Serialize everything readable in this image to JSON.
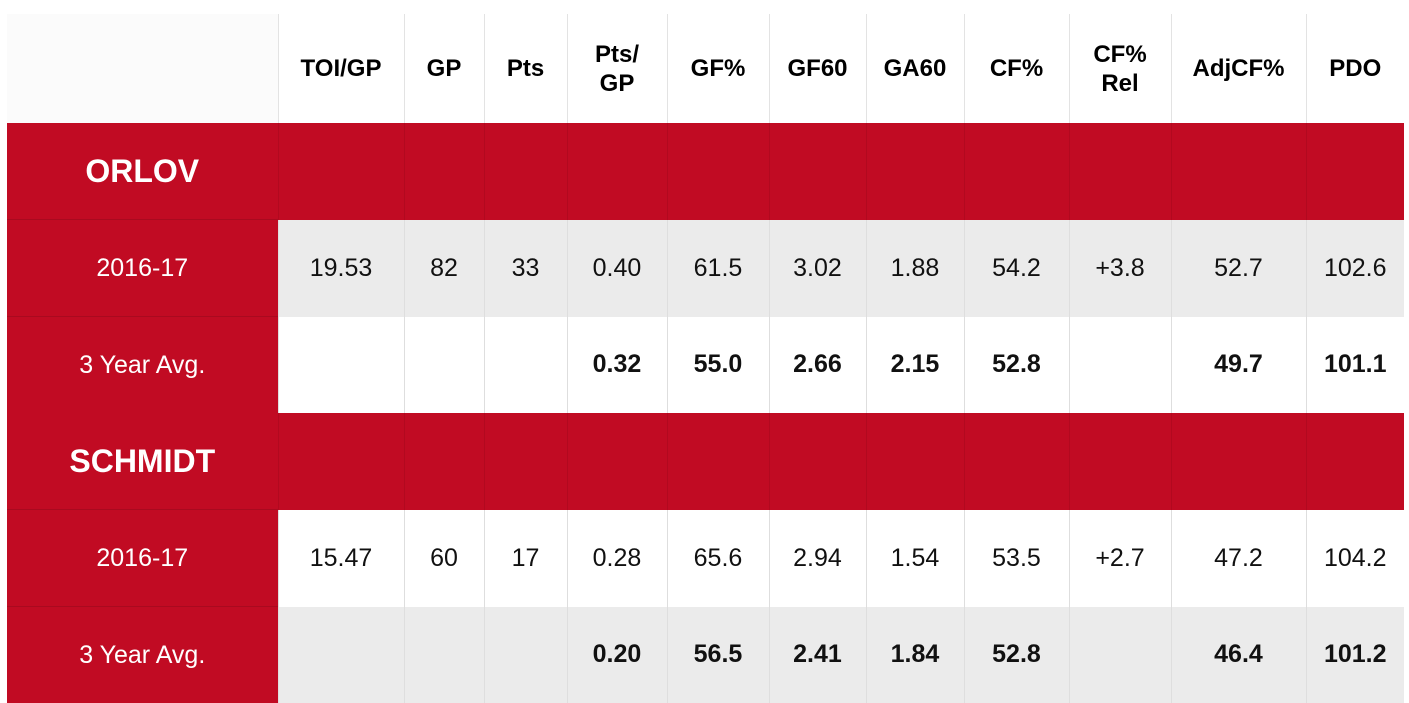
{
  "columns": [
    "TOI/GP",
    "GP",
    "Pts",
    "Pts/\nGP",
    "GF%",
    "GF60",
    "GA60",
    "CF%",
    "CF%\nRel",
    "AdjCF%",
    "PDO"
  ],
  "players": [
    {
      "name": "ORLOV",
      "rows": [
        {
          "label": "2016-17",
          "values": [
            "19.53",
            "82",
            "33",
            "0.40",
            "61.5",
            "3.02",
            "1.88",
            "54.2",
            "+3.8",
            "52.7",
            "102.6"
          ]
        },
        {
          "label": "3 Year Avg.",
          "values": [
            "",
            "",
            "",
            "0.32",
            "55.0",
            "2.66",
            "2.15",
            "52.8",
            "",
            "49.7",
            "101.1"
          ]
        }
      ]
    },
    {
      "name": "SCHMIDT",
      "rows": [
        {
          "label": "2016-17",
          "values": [
            "15.47",
            "60",
            "17",
            "0.28",
            "65.6",
            "2.94",
            "1.54",
            "53.5",
            "+2.7",
            "47.2",
            "104.2"
          ]
        },
        {
          "label": "3 Year Avg.",
          "values": [
            "",
            "",
            "",
            "0.20",
            "56.5",
            "2.41",
            "1.84",
            "52.8",
            "",
            "46.4",
            "101.2"
          ]
        }
      ]
    }
  ],
  "colors": {
    "accent": "#c10b23",
    "row_alt": "#ebebeb"
  }
}
